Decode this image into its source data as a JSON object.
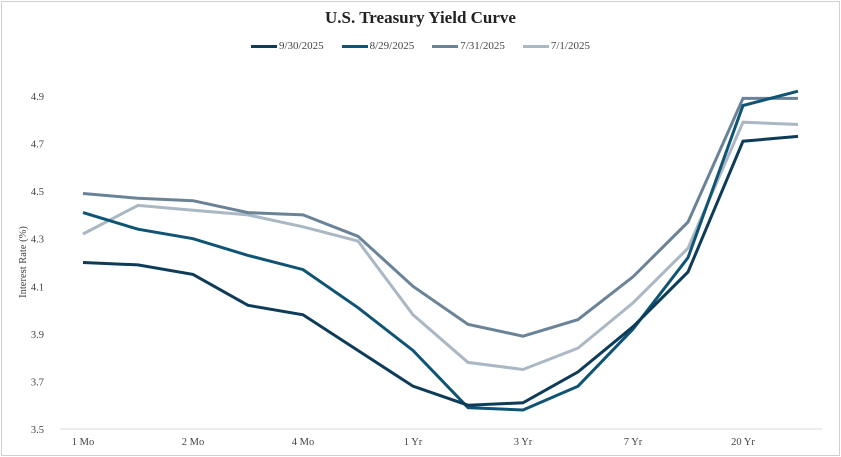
{
  "chart_data": {
    "type": "line",
    "title": "U.S. Treasury Yield Curve",
    "xlabel": "",
    "ylabel": "Interest Rate (%)",
    "ylim": [
      3.5,
      4.9
    ],
    "yticks": [
      "3.5",
      "3.7",
      "3.9",
      "4.1",
      "4.3",
      "4.5",
      "4.7",
      "4.9"
    ],
    "tick_labels": [
      "1 Mo",
      "",
      "2 Mo",
      "",
      "4 Mo",
      "",
      "1 Yr",
      "",
      "3 Yr",
      "",
      "7 Yr",
      "",
      "20 Yr",
      ""
    ],
    "grid": false,
    "legend_position": "top",
    "series": [
      {
        "name": "9/30/2025",
        "color": "#0d3b58",
        "values": [
          4.2,
          4.19,
          4.15,
          4.02,
          3.98,
          3.83,
          3.68,
          3.6,
          3.61,
          3.74,
          3.93,
          4.16,
          4.71,
          4.73
        ]
      },
      {
        "name": "8/29/2025",
        "color": "#0f5474",
        "values": [
          4.41,
          4.34,
          4.3,
          4.23,
          4.17,
          4.01,
          3.83,
          3.59,
          3.58,
          3.68,
          3.92,
          4.22,
          4.86,
          4.92
        ]
      },
      {
        "name": "7/31/2025",
        "color": "#6a8397",
        "values": [
          4.49,
          4.47,
          4.46,
          4.41,
          4.4,
          4.31,
          4.1,
          3.94,
          3.89,
          3.96,
          4.14,
          4.37,
          4.89,
          4.89
        ]
      },
      {
        "name": "7/1/2025",
        "color": "#aab7c4",
        "values": [
          4.32,
          4.44,
          4.42,
          4.4,
          4.35,
          4.29,
          3.98,
          3.78,
          3.75,
          3.84,
          4.03,
          4.26,
          4.79,
          4.78
        ]
      }
    ]
  }
}
